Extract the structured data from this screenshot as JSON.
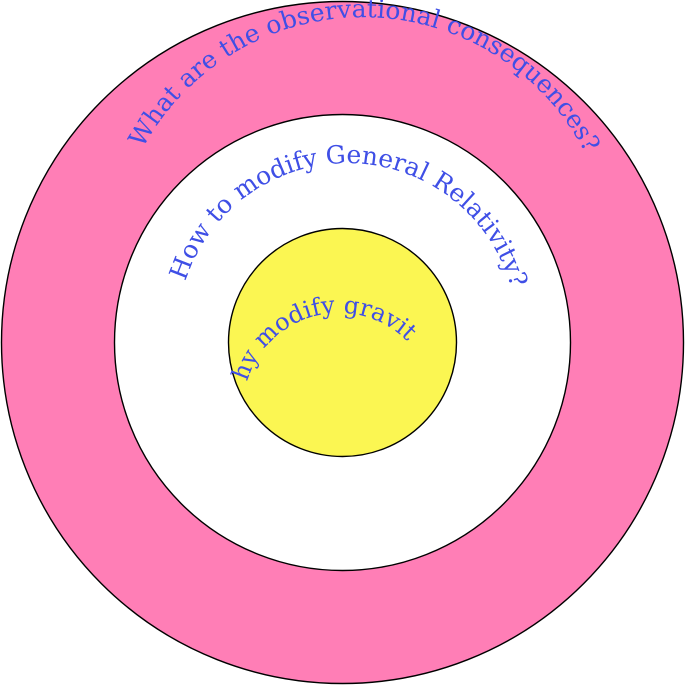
{
  "colors": {
    "outer_ring": "#ff7eb6",
    "middle_ring": "#ffffff",
    "inner_circle": "#fbf652",
    "text": "#3f4fe6",
    "outline": "#000000"
  },
  "rings": {
    "outer": {
      "label": "What are the observational consequences?"
    },
    "middle": {
      "label": "How to modify General Relativity?"
    },
    "inner": {
      "label": "Why modify gravity?"
    }
  }
}
